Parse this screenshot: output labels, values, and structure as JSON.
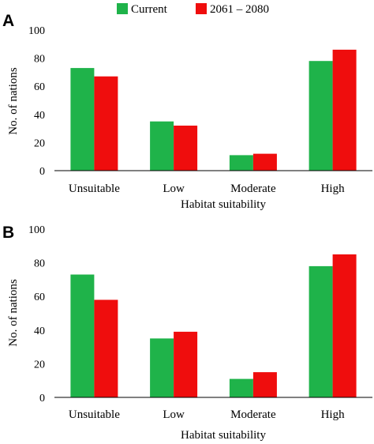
{
  "legend": {
    "series": [
      {
        "name": "Current",
        "color": "#1fb34a"
      },
      {
        "name": "2061 – 2080",
        "color": "#ef0d0d"
      }
    ]
  },
  "chart_data": [
    {
      "panel": "A",
      "type": "bar",
      "categories": [
        "Unsuitable",
        "Low",
        "Moderate",
        "High"
      ],
      "series": [
        {
          "name": "Current",
          "values": [
            73,
            35,
            11,
            78
          ]
        },
        {
          "name": "2061 – 2080",
          "values": [
            67,
            32,
            12,
            86
          ]
        }
      ],
      "xlabel": "Habitat suitability",
      "ylabel": "No. of nations",
      "ylim": [
        0,
        100
      ],
      "yticks": [
        0,
        20,
        40,
        60,
        80,
        100
      ],
      "grid": false,
      "legend_position": "top"
    },
    {
      "panel": "B",
      "type": "bar",
      "categories": [
        "Unsuitable",
        "Low",
        "Moderate",
        "High"
      ],
      "series": [
        {
          "name": "Current",
          "values": [
            73,
            35,
            11,
            78
          ]
        },
        {
          "name": "2061 – 2080",
          "values": [
            58,
            39,
            15,
            85
          ]
        }
      ],
      "xlabel": "Habitat suitability",
      "ylabel": "No. of nations",
      "ylim": [
        0,
        100
      ],
      "yticks": [
        0,
        20,
        40,
        60,
        80,
        100
      ],
      "grid": false,
      "legend_position": "top"
    }
  ]
}
